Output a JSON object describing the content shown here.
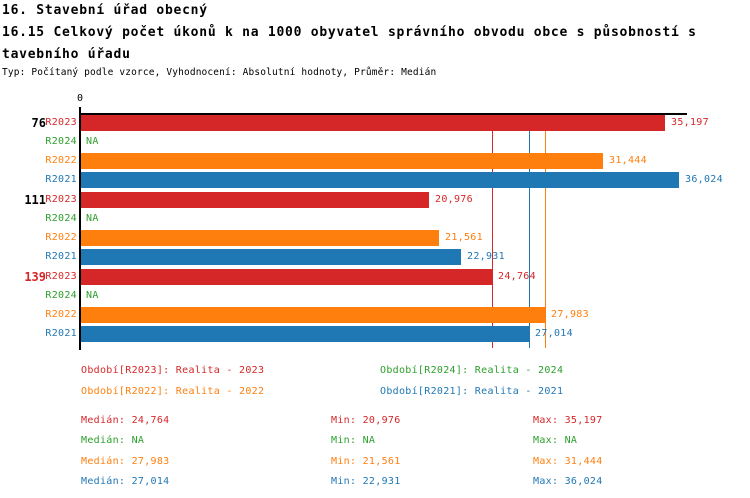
{
  "header": {
    "line1": "16. Stavební úřad obecný",
    "line2": "16.15 Celkový počet úkonů k na 1000 obyvatel správního obvodu obce s působností s",
    "line3": "tavebního úřadu",
    "subtitle": "Typ: Počítaný podle vzorce, Vyhodnocení: Absolutní hodnoty, Průměr: Medián"
  },
  "colors": {
    "red": "#d62728",
    "green": "#2ca02c",
    "orange": "#ff7f0e",
    "blue": "#1f77b4",
    "black": "#000000"
  },
  "chart_data": {
    "type": "bar",
    "orientation": "horizontal",
    "axis": {
      "origin_label": "0",
      "xmax": 36500,
      "grid": false
    },
    "series_meta": [
      {
        "key": "R2023",
        "color": "#d62728",
        "legend": "Období[R2023]: Realita - 2023"
      },
      {
        "key": "R2024",
        "color": "#2ca02c",
        "legend": "Období[R2024]: Realita - 2024"
      },
      {
        "key": "R2022",
        "color": "#ff7f0e",
        "legend": "Období[R2022]: Realita - 2022"
      },
      {
        "key": "R2021",
        "color": "#1f77b4",
        "legend": "Období[R2021]: Realita - 2021"
      }
    ],
    "groups": [
      {
        "label": "76",
        "label_color": "#000000",
        "bars": [
          {
            "series": "R2023",
            "value": 35197,
            "label": "35,197"
          },
          {
            "series": "R2024",
            "value": null,
            "label": "NA"
          },
          {
            "series": "R2022",
            "value": 31444,
            "label": "31,444"
          },
          {
            "series": "R2021",
            "value": 36024,
            "label": "36,024"
          }
        ]
      },
      {
        "label": "111",
        "label_color": "#000000",
        "bars": [
          {
            "series": "R2023",
            "value": 20976,
            "label": "20,976"
          },
          {
            "series": "R2024",
            "value": null,
            "label": "NA"
          },
          {
            "series": "R2022",
            "value": 21561,
            "label": "21,561"
          },
          {
            "series": "R2021",
            "value": 22931,
            "label": "22,931"
          }
        ]
      },
      {
        "label": "139",
        "label_color": "#d62728",
        "bars": [
          {
            "series": "R2023",
            "value": 24764,
            "label": "24,764"
          },
          {
            "series": "R2024",
            "value": null,
            "label": "NA"
          },
          {
            "series": "R2022",
            "value": 27983,
            "label": "27,983"
          },
          {
            "series": "R2021",
            "value": 27014,
            "label": "27,014"
          }
        ]
      }
    ],
    "median_lines": [
      {
        "series": "R2023",
        "value": 24764,
        "color": "#d62728"
      },
      {
        "series": "R2022",
        "value": 27983,
        "color": "#ff7f0e"
      },
      {
        "series": "R2021",
        "value": 27014,
        "color": "#1f77b4"
      }
    ]
  },
  "stats": {
    "rows": [
      {
        "series": "R2023",
        "color": "#d62728",
        "median": "Medián: 24,764",
        "min": "Min: 20,976",
        "max": "Max: 35,197"
      },
      {
        "series": "R2024",
        "color": "#2ca02c",
        "median": "Medián: NA",
        "min": "Min: NA",
        "max": "Max: NA"
      },
      {
        "series": "R2022",
        "color": "#ff7f0e",
        "median": "Medián: 27,983",
        "min": "Min: 21,561",
        "max": "Max: 31,444"
      },
      {
        "series": "R2021",
        "color": "#1f77b4",
        "median": "Medián: 27,014",
        "min": "Min: 22,931",
        "max": "Max: 36,024"
      }
    ]
  }
}
